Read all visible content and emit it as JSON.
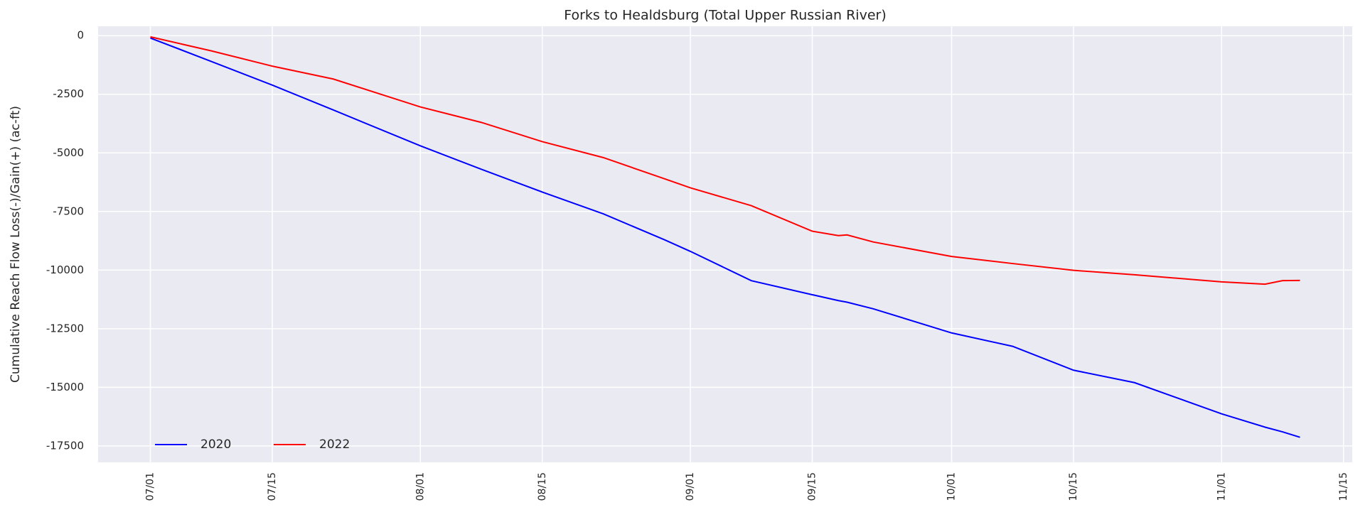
{
  "chart_data": {
    "type": "line",
    "title": "Forks to Healdsburg (Total Upper Russian River)",
    "y_label": "Cumulative Reach Flow Loss(-)/Gain(+) (ac-ft)",
    "x": [
      "07/01",
      "07/08",
      "07/15",
      "07/22",
      "08/01",
      "08/08",
      "08/15",
      "08/22",
      "08/29",
      "09/01",
      "09/08",
      "09/15",
      "09/18",
      "09/19",
      "09/22",
      "10/01",
      "10/08",
      "10/15",
      "10/22",
      "11/01",
      "11/06",
      "11/08",
      "11/10"
    ],
    "series": [
      {
        "name": "2020",
        "color": "#0000ff",
        "values": [
          -100,
          -1100,
          -2110,
          -3170,
          -4700,
          -5700,
          -6670,
          -7600,
          -8700,
          -9200,
          -10450,
          -11050,
          -11300,
          -11370,
          -11650,
          -12680,
          -13250,
          -14270,
          -14800,
          -16130,
          -16700,
          -16900,
          -17130
        ]
      },
      {
        "name": "2022",
        "color": "#ff0000",
        "values": [
          -50,
          -650,
          -1300,
          -1850,
          -3040,
          -3700,
          -4520,
          -5200,
          -6100,
          -6490,
          -7250,
          -8340,
          -8530,
          -8500,
          -8800,
          -9420,
          -9720,
          -10010,
          -10200,
          -10500,
          -10600,
          -10450,
          -10440
        ]
      }
    ],
    "xlim": [
      "06/25",
      "11/16"
    ],
    "xticks": [
      "07/01",
      "07/15",
      "08/01",
      "08/15",
      "09/01",
      "09/15",
      "10/01",
      "10/15",
      "11/01",
      "11/15"
    ],
    "ylim": [
      -18200,
      400
    ],
    "yticks": [
      0,
      -2500,
      -5000,
      -7500,
      -10000,
      -12500,
      -15000,
      -17500
    ],
    "grid": true,
    "legend": "lower left"
  }
}
